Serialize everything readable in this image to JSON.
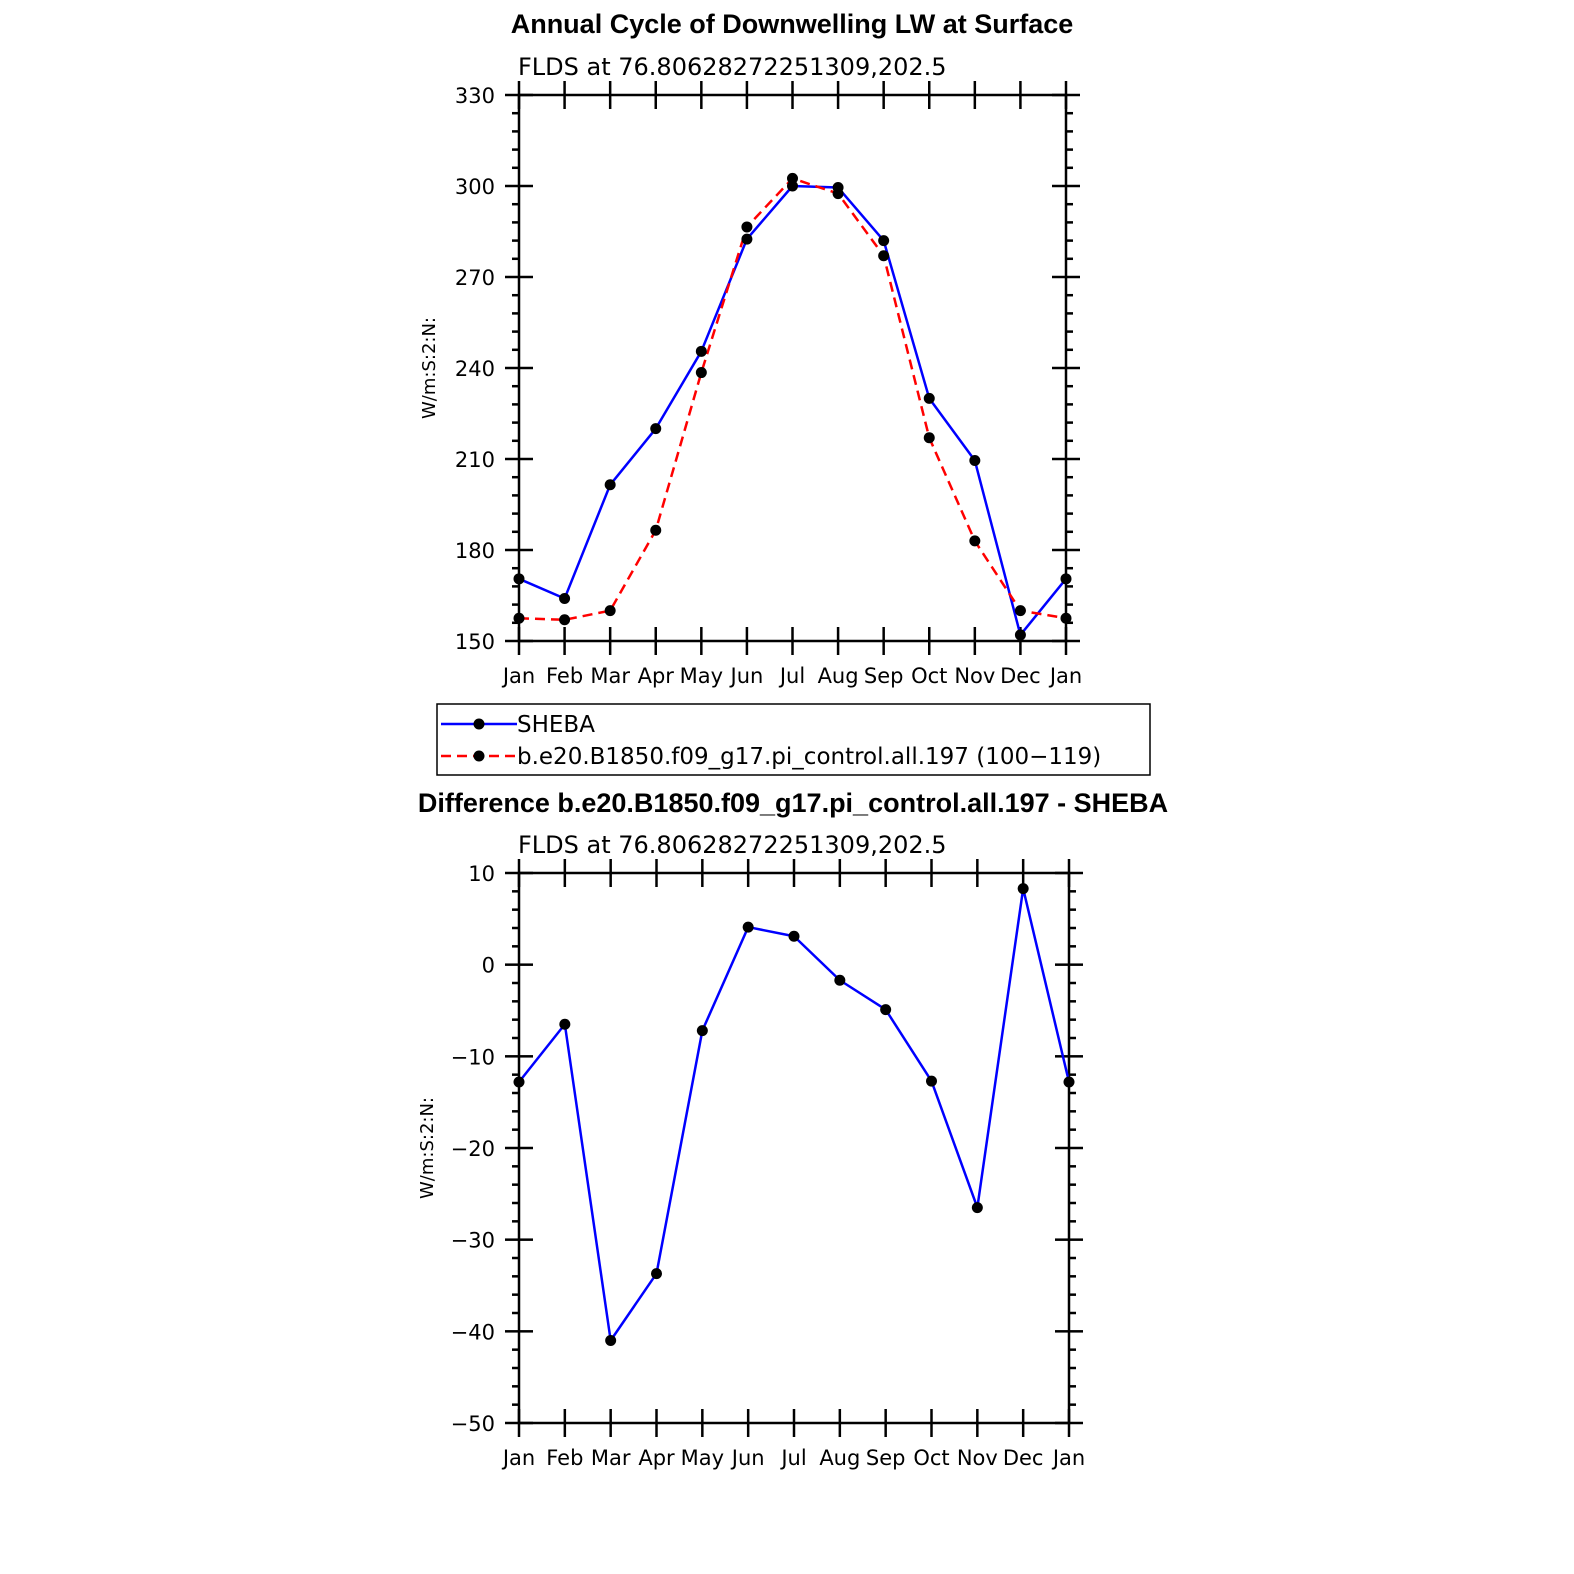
{
  "figure": {
    "background": "#ffffff",
    "axis_color": "#000000",
    "marker_color": "#000000"
  },
  "chart_data": [
    {
      "type": "line",
      "title": "Annual Cycle of Downwelling LW at Surface",
      "subtitle": "FLDS at 76.80628272251309,202.5",
      "ylabel": "W/m:S:2:N:",
      "xlabel": "",
      "categories": [
        "Jan",
        "Feb",
        "Mar",
        "Apr",
        "May",
        "Jun",
        "Jul",
        "Aug",
        "Sep",
        "Oct",
        "Nov",
        "Dec",
        "Jan"
      ],
      "ylim": [
        150,
        330
      ],
      "yticks": [
        150,
        180,
        210,
        240,
        270,
        300,
        330
      ],
      "grid": false,
      "legend": "below",
      "series": [
        {
          "name": "SHEBA",
          "color": "#0000ff",
          "style": "solid",
          "values": [
            170.5,
            164.0,
            201.5,
            220.0,
            245.5,
            282.5,
            300.0,
            299.5,
            282.0,
            230.0,
            209.5,
            152.0,
            170.5
          ]
        },
        {
          "name": "b.e20.B1850.f09_g17.pi_control.all.197 (100−119)",
          "color": "#ff0000",
          "style": "dashed",
          "values": [
            157.5,
            157.0,
            160.0,
            186.5,
            238.5,
            286.5,
            302.5,
            297.5,
            277.0,
            217.0,
            183.0,
            160.0,
            157.5
          ]
        }
      ]
    },
    {
      "type": "line",
      "title": "Difference b.e20.B1850.f09_g17.pi_control.all.197 - SHEBA",
      "subtitle": "FLDS at 76.80628272251309,202.5",
      "ylabel": "W/m:S:2:N:",
      "xlabel": "",
      "categories": [
        "Jan",
        "Feb",
        "Mar",
        "Apr",
        "May",
        "Jun",
        "Jul",
        "Aug",
        "Sep",
        "Oct",
        "Nov",
        "Dec",
        "Jan"
      ],
      "ylim": [
        -50,
        10
      ],
      "yticks": [
        -50,
        -40,
        -30,
        -20,
        -10,
        0,
        10
      ],
      "ytick_labels": [
        "−50",
        "−40",
        "−30",
        "−20",
        "−10",
        "0",
        "10"
      ],
      "grid": false,
      "series": [
        {
          "color": "#0000ff",
          "style": "solid",
          "values": [
            -12.8,
            -6.5,
            -41.0,
            -33.7,
            -7.2,
            4.1,
            3.1,
            -1.7,
            -4.9,
            -12.7,
            -26.5,
            8.3,
            -12.8
          ]
        }
      ]
    }
  ]
}
